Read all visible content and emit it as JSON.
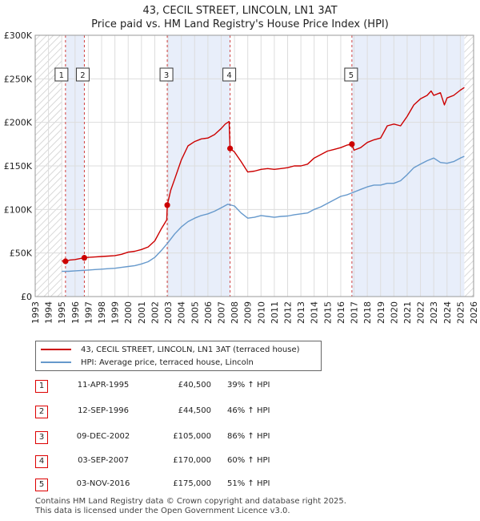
{
  "title_line1": "43, CECIL STREET, LINCOLN, LN1 3AT",
  "title_line2": "Price paid vs. HM Land Registry's House Price Index (HPI)",
  "colors": {
    "property": "#cc0000",
    "hpi": "#6699cc",
    "shade": "#e8eefa",
    "grid": "#dddddd"
  },
  "legend": {
    "property_label": "43, CECIL STREET, LINCOLN, LN1 3AT (terraced house)",
    "hpi_label": "HPI: Average price, terraced house, Lincoln"
  },
  "sales": [
    {
      "num": "1",
      "date": "11-APR-1995",
      "price": "£40,500",
      "hpi": "39% ↑ HPI"
    },
    {
      "num": "2",
      "date": "12-SEP-1996",
      "price": "£44,500",
      "hpi": "46% ↑ HPI"
    },
    {
      "num": "3",
      "date": "09-DEC-2002",
      "price": "£105,000",
      "hpi": "86% ↑ HPI"
    },
    {
      "num": "4",
      "date": "03-SEP-2007",
      "price": "£170,000",
      "hpi": "60% ↑ HPI"
    },
    {
      "num": "5",
      "date": "03-NOV-2016",
      "price": "£175,000",
      "hpi": "51% ↑ HPI"
    }
  ],
  "footer_line1": "Contains HM Land Registry data © Crown copyright and database right 2025.",
  "footer_line2": "This data is licensed under the Open Government Licence v3.0.",
  "chart_data": {
    "type": "line",
    "xlim": [
      1993,
      2026
    ],
    "ylim": [
      0,
      300000
    ],
    "x_ticks": [
      1993,
      1994,
      1995,
      1996,
      1997,
      1998,
      1999,
      2000,
      2001,
      2002,
      2003,
      2004,
      2005,
      2006,
      2007,
      2008,
      2009,
      2010,
      2011,
      2012,
      2013,
      2014,
      2015,
      2016,
      2017,
      2018,
      2019,
      2020,
      2021,
      2022,
      2023,
      2024,
      2025,
      2026
    ],
    "y_ticks": [
      0,
      50000,
      100000,
      150000,
      200000,
      250000,
      300000
    ],
    "y_tick_labels": [
      "£0",
      "£50K",
      "£100K",
      "£150K",
      "£200K",
      "£250K",
      "£300K"
    ],
    "shaded_ranges": [
      [
        1995.28,
        1996.7
      ],
      [
        2002.94,
        2007.67
      ],
      [
        2016.84,
        2025.3
      ]
    ],
    "hatched_before": 1995.0,
    "hatched_after": 2025.3,
    "sale_points": [
      {
        "label": "1",
        "x": 1995.28,
        "y": 40500
      },
      {
        "label": "2",
        "x": 1996.7,
        "y": 44500
      },
      {
        "label": "3",
        "x": 2002.94,
        "y": 105000
      },
      {
        "label": "4",
        "x": 2007.67,
        "y": 170000
      },
      {
        "label": "5",
        "x": 2016.84,
        "y": 175000
      }
    ],
    "series": [
      {
        "name": "43, CECIL STREET, LINCOLN, LN1 3AT (terraced house)",
        "x": [
          1995.0,
          1995.28,
          1995.6,
          1996.0,
          1996.5,
          1996.7,
          1997.0,
          1997.5,
          1998.0,
          1998.5,
          1999.0,
          1999.5,
          2000.0,
          2000.5,
          2001.0,
          2001.5,
          2002.0,
          2002.5,
          2002.9,
          2002.94,
          2003.2,
          2003.5,
          2004.0,
          2004.5,
          2005.0,
          2005.5,
          2006.0,
          2006.5,
          2007.0,
          2007.3,
          2007.6,
          2007.67,
          2008.0,
          2008.5,
          2009.0,
          2009.5,
          2010.0,
          2010.5,
          2011.0,
          2011.5,
          2012.0,
          2012.5,
          2013.0,
          2013.5,
          2014.0,
          2014.5,
          2015.0,
          2015.5,
          2016.0,
          2016.5,
          2016.84,
          2017.0,
          2017.5,
          2018.0,
          2018.5,
          2019.0,
          2019.5,
          2020.0,
          2020.5,
          2021.0,
          2021.5,
          2022.0,
          2022.5,
          2022.8,
          2023.0,
          2023.5,
          2023.8,
          2024.0,
          2024.5,
          2025.0,
          2025.3
        ],
        "values": [
          41000,
          40500,
          42000,
          42500,
          44000,
          44500,
          45000,
          45500,
          46000,
          46500,
          47000,
          48500,
          51000,
          52000,
          54000,
          57000,
          64000,
          78000,
          88000,
          105000,
          122000,
          135000,
          157000,
          173000,
          178000,
          181000,
          182000,
          186000,
          193000,
          198000,
          201000,
          170000,
          166000,
          155000,
          143000,
          144000,
          146000,
          147000,
          146000,
          147000,
          148000,
          150000,
          150000,
          152000,
          159000,
          163000,
          167000,
          169000,
          171000,
          174000,
          175000,
          168000,
          171000,
          177000,
          180000,
          182000,
          196000,
          198000,
          196000,
          207000,
          220000,
          227000,
          231000,
          236000,
          231000,
          234000,
          220000,
          228000,
          231000,
          237000,
          240000
        ]
      },
      {
        "name": "HPI: Average price, terraced house, Lincoln",
        "x": [
          1995.0,
          1995.5,
          1996.0,
          1996.5,
          1997.0,
          1997.5,
          1998.0,
          1998.5,
          1999.0,
          1999.5,
          2000.0,
          2000.5,
          2001.0,
          2001.5,
          2002.0,
          2002.5,
          2003.0,
          2003.5,
          2004.0,
          2004.5,
          2005.0,
          2005.5,
          2006.0,
          2006.5,
          2007.0,
          2007.5,
          2008.0,
          2008.5,
          2009.0,
          2009.5,
          2010.0,
          2010.5,
          2011.0,
          2011.5,
          2012.0,
          2012.5,
          2013.0,
          2013.5,
          2014.0,
          2014.5,
          2015.0,
          2015.5,
          2016.0,
          2016.5,
          2017.0,
          2017.5,
          2018.0,
          2018.5,
          2019.0,
          2019.5,
          2020.0,
          2020.5,
          2021.0,
          2021.5,
          2022.0,
          2022.5,
          2023.0,
          2023.5,
          2024.0,
          2024.5,
          2025.0,
          2025.3
        ],
        "values": [
          29000,
          29000,
          29500,
          30000,
          30500,
          31000,
          31500,
          32000,
          32500,
          33500,
          34500,
          35500,
          37500,
          40000,
          45000,
          53000,
          62000,
          72000,
          80000,
          86000,
          90000,
          93000,
          95000,
          98000,
          102000,
          106000,
          104000,
          96000,
          90000,
          91000,
          93000,
          92000,
          91000,
          92000,
          92500,
          94000,
          95000,
          96000,
          100000,
          103000,
          107000,
          111000,
          115000,
          117000,
          120000,
          123000,
          126000,
          128000,
          128000,
          130000,
          130000,
          133000,
          140000,
          148000,
          152000,
          156000,
          159000,
          154000,
          153000,
          155000,
          159000,
          161000
        ]
      }
    ]
  }
}
